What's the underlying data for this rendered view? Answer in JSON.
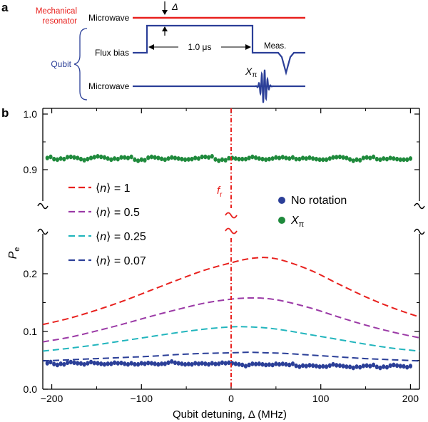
{
  "panel_a": {
    "label": "a",
    "mech_label_1": "Mechanical",
    "mech_label_2": "resonator",
    "mech_microwave": "Microwave",
    "delta_symbol": "Δ",
    "qubit_label": "Qubit",
    "flux_label": "Flux bias",
    "duration_label": "1.0 μs",
    "meas_label": "Meas.",
    "qubit_microwave": "Microwave",
    "xpi_main": "X",
    "xpi_sub": "π",
    "colors": {
      "mechanical": "#e8211e",
      "qubit": "#2b3f98",
      "arrow": "#000000"
    }
  },
  "chart_data": {
    "panel_label": "b",
    "type": "line",
    "xlabel": "Qubit detuning, Δ (MHz)",
    "ylabel_main": "P",
    "ylabel_sub": "e",
    "xlim": [
      -210,
      210
    ],
    "x_ticks": [
      -200,
      -100,
      0,
      100,
      200
    ],
    "x_tick_labels": [
      "−200",
      "−100",
      "0",
      "100",
      "200"
    ],
    "y_ticks_top": [
      0.9,
      1.0
    ],
    "y_tick_labels_top": [
      "0.9",
      "1.0"
    ],
    "y_ticks_bottom": [
      0.0,
      0.1,
      0.2
    ],
    "y_tick_labels_bottom": [
      "0.0",
      "0.1",
      "0.2"
    ],
    "y_range_top": [
      0.875,
      1.0
    ],
    "y_range_bottom": [
      0.0,
      0.25
    ],
    "axis_break": true,
    "fr_label": "f",
    "fr_sub": "r",
    "fr_position": 0,
    "series": [
      {
        "name": "⟨n⟩ = 1",
        "n_value": "1",
        "color": "#e8211e",
        "style": "dashed",
        "x": [
          -210,
          -180,
          -150,
          -120,
          -90,
          -60,
          -30,
          0,
          20,
          40,
          60,
          90,
          120,
          150,
          180,
          210
        ],
        "values": [
          0.112,
          0.123,
          0.137,
          0.153,
          0.171,
          0.189,
          0.206,
          0.219,
          0.226,
          0.228,
          0.222,
          0.205,
          0.182,
          0.16,
          0.141,
          0.125
        ]
      },
      {
        "name": "⟨n⟩ = 0.5",
        "n_value": "0.5",
        "color": "#9b3aa6",
        "style": "dashed",
        "x": [
          -210,
          -180,
          -150,
          -120,
          -90,
          -60,
          -30,
          0,
          20,
          40,
          60,
          90,
          120,
          150,
          180,
          210
        ],
        "values": [
          0.082,
          0.09,
          0.101,
          0.113,
          0.126,
          0.138,
          0.149,
          0.156,
          0.158,
          0.157,
          0.152,
          0.14,
          0.125,
          0.111,
          0.099,
          0.089
        ]
      },
      {
        "name": "⟨n⟩ = 0.25",
        "n_value": "0.25",
        "color": "#22b5bd",
        "style": "dashed",
        "x": [
          -210,
          -180,
          -150,
          -120,
          -90,
          -60,
          -30,
          0,
          20,
          40,
          60,
          90,
          120,
          150,
          180,
          210
        ],
        "values": [
          0.066,
          0.071,
          0.077,
          0.084,
          0.091,
          0.098,
          0.104,
          0.108,
          0.108,
          0.106,
          0.102,
          0.094,
          0.086,
          0.078,
          0.071,
          0.066
        ]
      },
      {
        "name": "⟨n⟩ = 0.07",
        "n_value": "0.07",
        "color": "#2b3f98",
        "style": "dashed",
        "x": [
          -210,
          -180,
          -150,
          -120,
          -90,
          -60,
          -30,
          0,
          20,
          40,
          60,
          90,
          120,
          150,
          180,
          210
        ],
        "values": [
          0.049,
          0.051,
          0.053,
          0.055,
          0.057,
          0.06,
          0.062,
          0.063,
          0.064,
          0.063,
          0.062,
          0.059,
          0.056,
          0.053,
          0.051,
          0.049
        ]
      },
      {
        "name": "No rotation",
        "color": "#2b3f98",
        "style": "markers",
        "x": [
          -205,
          -190,
          -175,
          -160,
          -145,
          -130,
          -115,
          -100,
          -85,
          -70,
          -55,
          -40,
          -25,
          -10,
          5,
          20,
          35,
          50,
          65,
          80,
          95,
          110,
          125,
          140,
          155,
          170,
          185,
          200
        ],
        "values": [
          0.045,
          0.044,
          0.046,
          0.045,
          0.044,
          0.046,
          0.043,
          0.045,
          0.044,
          0.046,
          0.044,
          0.045,
          0.043,
          0.046,
          0.044,
          0.042,
          0.043,
          0.044,
          0.042,
          0.041,
          0.04,
          0.041,
          0.04,
          0.039,
          0.04,
          0.039,
          0.041,
          0.04
        ]
      },
      {
        "name": "X",
        "name_sub": "π",
        "color": "#1f8a3c",
        "style": "markers",
        "x": [
          -205,
          -190,
          -175,
          -160,
          -145,
          -130,
          -115,
          -100,
          -85,
          -70,
          -55,
          -40,
          -25,
          -10,
          5,
          20,
          35,
          50,
          65,
          80,
          95,
          110,
          125,
          140,
          155,
          170,
          185,
          200
        ],
        "values": [
          0.921,
          0.92,
          0.922,
          0.919,
          0.923,
          0.92,
          0.921,
          0.918,
          0.922,
          0.92,
          0.919,
          0.921,
          0.922,
          0.918,
          0.92,
          0.921,
          0.919,
          0.922,
          0.92,
          0.921,
          0.919,
          0.92,
          0.922,
          0.918,
          0.921,
          0.92,
          0.919,
          0.92
        ]
      }
    ]
  }
}
